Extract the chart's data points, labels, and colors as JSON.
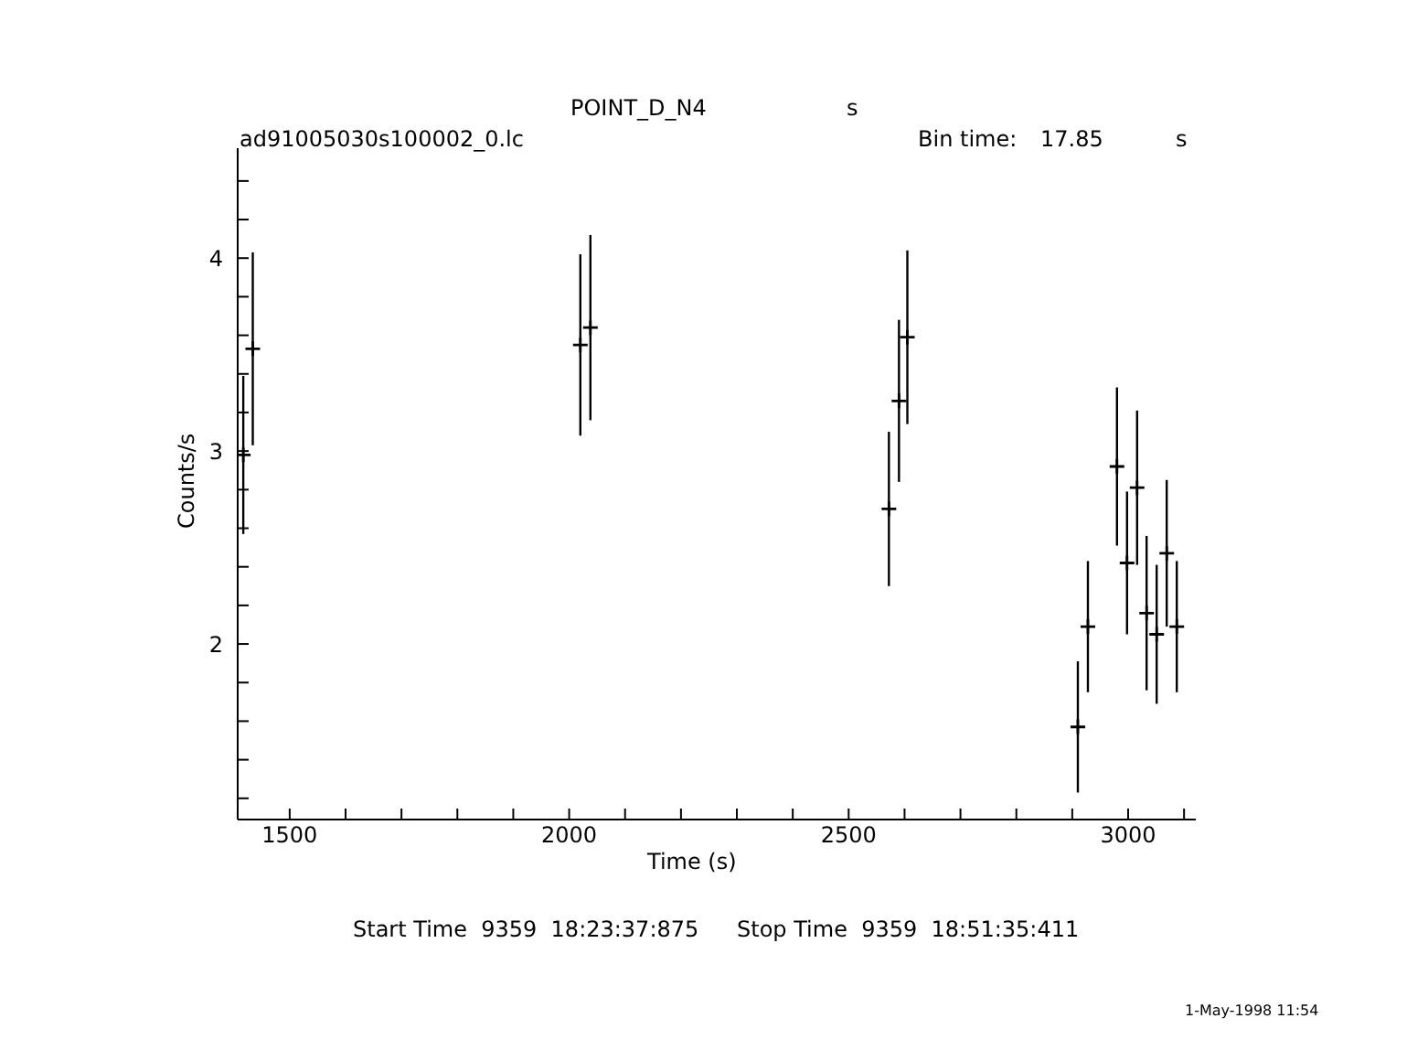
{
  "chart_data": {
    "type": "scatter",
    "title": "POINT_D_N4",
    "xlabel": "Time (s)",
    "ylabel": "Counts/s",
    "annotations": [
      "s",
      "ad91005030s100002_0.lc",
      "Bin time:",
      "17.85",
      "s",
      "Start Time  9359  18:23:37:875",
      "Stop Time  9359  18:51:35:411",
      "1-May-1998 11:54"
    ],
    "x": [
      1417,
      1434,
      2020,
      2038,
      2572,
      2590,
      2605,
      2910,
      2928,
      2980,
      2998,
      3016,
      3033,
      3051,
      3069,
      3087
    ],
    "series": [
      {
        "color": "#000000",
        "values": [
          2.98,
          3.53,
          3.55,
          3.64,
          2.7,
          3.26,
          3.59,
          1.57,
          2.09,
          2.92,
          2.42,
          2.81,
          2.16,
          2.05,
          2.47,
          2.09
        ],
        "errors": [
          0.41,
          0.5,
          0.47,
          0.48,
          0.4,
          0.42,
          0.45,
          0.34,
          0.34,
          0.41,
          0.37,
          0.4,
          0.4,
          0.36,
          0.38,
          0.34
        ]
      }
    ],
    "xlim": [
      1407,
      3121
    ],
    "ylim": [
      1.09,
      4.57
    ],
    "xticks": [
      {
        "value": 1500,
        "label": "1500"
      },
      {
        "value": 1600,
        "label": null
      },
      {
        "value": 1700,
        "label": null
      },
      {
        "value": 1800,
        "label": null
      },
      {
        "value": 1900,
        "label": null
      },
      {
        "value": 2000,
        "label": "2000"
      },
      {
        "value": 2100,
        "label": null
      },
      {
        "value": 2200,
        "label": null
      },
      {
        "value": 2300,
        "label": null
      },
      {
        "value": 2400,
        "label": null
      },
      {
        "value": 2500,
        "label": "2500"
      },
      {
        "value": 2600,
        "label": null
      },
      {
        "value": 2700,
        "label": null
      },
      {
        "value": 2800,
        "label": null
      },
      {
        "value": 2900,
        "label": null
      },
      {
        "value": 3000,
        "label": "3000"
      },
      {
        "value": 3100,
        "label": null
      }
    ],
    "yticks": [
      {
        "value": 1.2,
        "label": null
      },
      {
        "value": 1.4,
        "label": null
      },
      {
        "value": 1.6,
        "label": null
      },
      {
        "value": 1.8,
        "label": null
      },
      {
        "value": 2,
        "label": "2"
      },
      {
        "value": 2.2,
        "label": null
      },
      {
        "value": 2.4,
        "label": null
      },
      {
        "value": 2.6,
        "label": null
      },
      {
        "value": 2.8,
        "label": null
      },
      {
        "value": 3,
        "label": "3"
      },
      {
        "value": 3.2,
        "label": null
      },
      {
        "value": 3.4,
        "label": null
      },
      {
        "value": 3.6,
        "label": null
      },
      {
        "value": 3.8,
        "label": null
      },
      {
        "value": 4,
        "label": "4"
      },
      {
        "value": 4.2,
        "label": null
      },
      {
        "value": 4.4,
        "label": null
      }
    ],
    "grid": false,
    "legend": false,
    "marker": "cross"
  }
}
